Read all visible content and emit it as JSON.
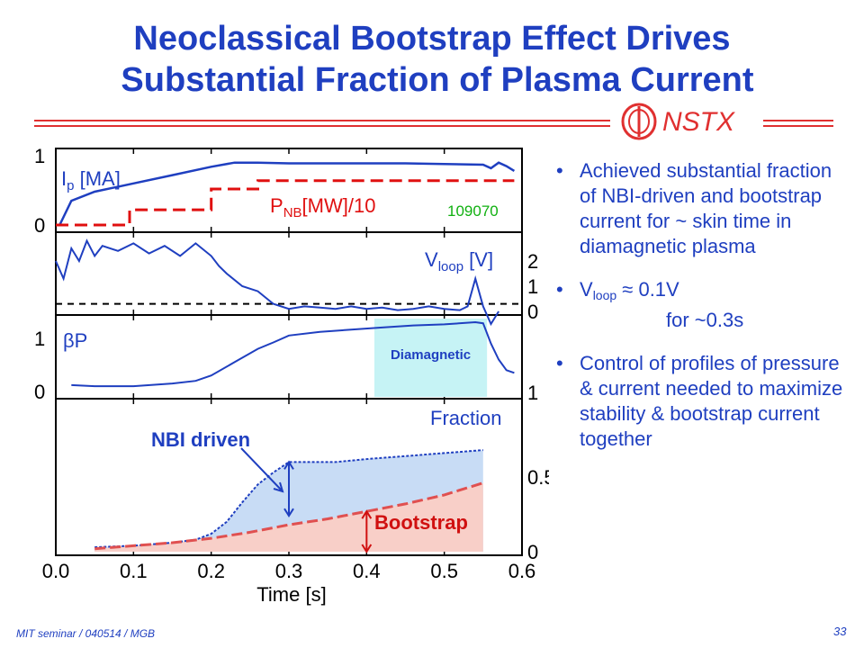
{
  "slide": {
    "title_line1": "Neoclassical Bootstrap Effect Drives",
    "title_line2": "Substantial Fraction of Plasma Current",
    "logo_text": "NSTX",
    "footer": "MIT seminar / 040514 / MGB",
    "page_number": "33",
    "colors": {
      "title": "#1f3fc0",
      "rule": "#e03030",
      "text": "#1f3fc0"
    }
  },
  "bullets": {
    "b1": "Achieved substantial fraction of NBI-driven and bootstrap current for ~ skin time in diamagnetic plasma",
    "b2_prefix": "V",
    "b2_sub": "loop",
    "b2_rest": " ≈ 0.1V",
    "b2_line2": "for ~0.3s",
    "b3": "Control of profiles of pressure & current needed to maximize stability & bootstrap current together"
  },
  "chart_data": [
    {
      "type": "line",
      "panel": "ip_pnb",
      "xlim": [
        0.0,
        0.6
      ],
      "ylim": [
        0,
        1
      ],
      "left_ticks": [
        "1",
        "0"
      ],
      "label_ip": "I",
      "label_ip_sub": "p",
      "label_ip_unit": " [MA]",
      "label_pnb": "P",
      "label_pnb_sub": "NB",
      "label_pnb_unit": "[MW]/10",
      "shot": "109070",
      "series": [
        {
          "name": "Ip",
          "color": "#1f3fc0",
          "x": [
            0.005,
            0.02,
            0.05,
            0.1,
            0.15,
            0.2,
            0.23,
            0.26,
            0.3,
            0.35,
            0.4,
            0.45,
            0.5,
            0.55,
            0.56,
            0.57,
            0.58,
            0.59
          ],
          "y": [
            0.0,
            0.35,
            0.48,
            0.6,
            0.72,
            0.84,
            0.9,
            0.9,
            0.89,
            0.89,
            0.89,
            0.89,
            0.88,
            0.87,
            0.82,
            0.9,
            0.85,
            0.78
          ]
        },
        {
          "name": "PNB",
          "style": "dashed",
          "color": "#e01010",
          "x": [
            0.0,
            0.095,
            0.095,
            0.2,
            0.2,
            0.26,
            0.26,
            0.59
          ],
          "y": [
            0.0,
            0.0,
            0.22,
            0.22,
            0.52,
            0.52,
            0.64,
            0.64
          ]
        }
      ]
    },
    {
      "type": "line",
      "panel": "vloop",
      "xlim": [
        0.0,
        0.6
      ],
      "ylim": [
        0,
        3
      ],
      "right_ticks": [
        "2",
        "1",
        "0"
      ],
      "label": "V",
      "label_sub": "loop",
      "label_unit": " [V]",
      "series": [
        {
          "name": "Vloop",
          "color": "#1f3fc0",
          "x": [
            0.0,
            0.01,
            0.02,
            0.03,
            0.04,
            0.05,
            0.06,
            0.08,
            0.1,
            0.12,
            0.14,
            0.16,
            0.18,
            0.2,
            0.21,
            0.22,
            0.24,
            0.26,
            0.28,
            0.3,
            0.32,
            0.34,
            0.36,
            0.38,
            0.4,
            0.42,
            0.44,
            0.46,
            0.48,
            0.5,
            0.52,
            0.53,
            0.54,
            0.55,
            0.56,
            0.57
          ],
          "y": [
            2.0,
            1.3,
            2.5,
            2.0,
            2.8,
            2.2,
            2.6,
            2.4,
            2.7,
            2.3,
            2.6,
            2.2,
            2.7,
            2.2,
            1.8,
            1.5,
            1.0,
            0.8,
            0.3,
            0.1,
            0.2,
            0.15,
            0.1,
            0.2,
            0.1,
            0.15,
            0.05,
            0.1,
            0.2,
            0.1,
            0.05,
            0.2,
            1.3,
            0.2,
            -0.5,
            0.0
          ]
        }
      ],
      "zero_line": 0.3
    },
    {
      "type": "line",
      "panel": "betap",
      "xlim": [
        0.0,
        0.6
      ],
      "ylim": [
        0,
        1.3
      ],
      "left_ticks": [
        "1",
        "0"
      ],
      "right_ticks": [
        "1"
      ],
      "label": "βP",
      "annotation": "Diamagnetic",
      "annotation_range": [
        0.41,
        0.555
      ],
      "series": [
        {
          "name": "betaP",
          "color": "#1f3fc0",
          "x": [
            0.02,
            0.05,
            0.1,
            0.15,
            0.18,
            0.2,
            0.23,
            0.26,
            0.28,
            0.3,
            0.34,
            0.38,
            0.42,
            0.46,
            0.5,
            0.54,
            0.55,
            0.56,
            0.57,
            0.58,
            0.59
          ],
          "y": [
            0.12,
            0.1,
            0.1,
            0.15,
            0.2,
            0.3,
            0.55,
            0.8,
            0.92,
            1.05,
            1.12,
            1.16,
            1.2,
            1.24,
            1.26,
            1.3,
            1.28,
            0.9,
            0.6,
            0.4,
            0.35
          ]
        }
      ]
    },
    {
      "type": "area",
      "panel": "fraction",
      "xlim": [
        0.0,
        0.6
      ],
      "ylim": [
        0,
        1
      ],
      "xticks": [
        "0.0",
        "0.1",
        "0.2",
        "0.3",
        "0.4",
        "0.5",
        "0.6"
      ],
      "right_ticks": [
        "0.5",
        "0"
      ],
      "xlabel": "Time [s]",
      "label": "Fraction",
      "annotation_nbi": "NBI driven",
      "annotation_bs": "Bootstrap",
      "series": [
        {
          "name": "NBI driven",
          "color": "#1f3fc0",
          "fill": "#c8dcf5",
          "x": [
            0.05,
            0.1,
            0.15,
            0.18,
            0.2,
            0.22,
            0.24,
            0.26,
            0.28,
            0.3,
            0.33,
            0.36,
            0.4,
            0.45,
            0.5,
            0.55
          ],
          "y": [
            0.03,
            0.04,
            0.06,
            0.08,
            0.12,
            0.2,
            0.33,
            0.45,
            0.53,
            0.6,
            0.6,
            0.6,
            0.62,
            0.64,
            0.66,
            0.68
          ]
        },
        {
          "name": "Bootstrap",
          "color": "#e05050",
          "fill": "#f8cfc8",
          "x": [
            0.05,
            0.1,
            0.15,
            0.2,
            0.25,
            0.3,
            0.35,
            0.4,
            0.45,
            0.5,
            0.55
          ],
          "y": [
            0.02,
            0.04,
            0.06,
            0.09,
            0.13,
            0.18,
            0.22,
            0.27,
            0.32,
            0.38,
            0.46
          ]
        }
      ]
    }
  ]
}
